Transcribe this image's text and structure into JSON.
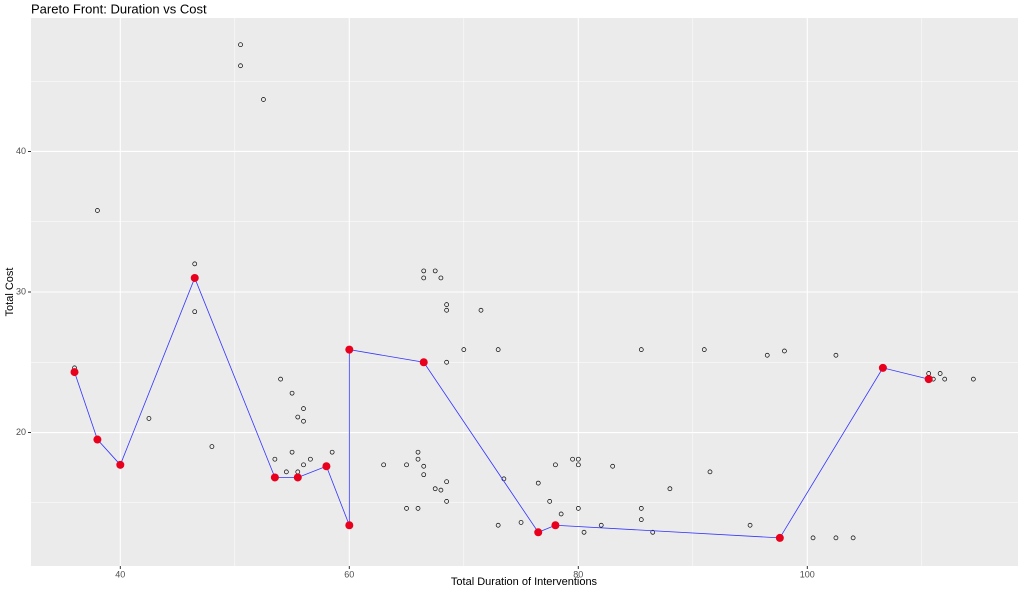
{
  "chart_data": {
    "type": "scatter",
    "title": "Pareto Front: Duration vs Cost",
    "x_label": "Total Duration of Interventions",
    "y_label": "Total Cost",
    "xlim": [
      32.2,
      118.4
    ],
    "ylim": [
      10.5,
      49.5
    ],
    "xticks": [
      40,
      60,
      80,
      100
    ],
    "yticks": [
      20,
      30,
      40
    ],
    "grid": true,
    "points": {
      "color": "#000000",
      "x": [
        36,
        38,
        42.5,
        46.5,
        46.5,
        48,
        50.5,
        50.5,
        52.5,
        53.5,
        54,
        54.5,
        55,
        55,
        55.5,
        55.5,
        56,
        56,
        56,
        56.6,
        58.5,
        63,
        65,
        65,
        66,
        66,
        66,
        66.5,
        66.5,
        66.5,
        66.5,
        67.5,
        67.5,
        68,
        68,
        68.5,
        68.5,
        68.5,
        68.5,
        68.5,
        70,
        71.5,
        73,
        73,
        73.5,
        75,
        76.5,
        77.5,
        78,
        78.5,
        79.5,
        80,
        80,
        80,
        80.5,
        82,
        83,
        85.5,
        85.5,
        85.5,
        86.5,
        88,
        91,
        91.5,
        95,
        96.5,
        98,
        100.5,
        102.5,
        102.5,
        104,
        110.6,
        111,
        111.6,
        112,
        114.5
      ],
      "y": [
        24.6,
        35.8,
        21.0,
        32.0,
        28.6,
        19.0,
        47.6,
        46.1,
        43.7,
        18.1,
        23.8,
        17.2,
        22.8,
        18.6,
        21.1,
        17.2,
        21.7,
        20.8,
        17.7,
        18.1,
        18.6,
        17.7,
        17.7,
        14.6,
        18.6,
        18.1,
        14.6,
        31.5,
        31.0,
        17.6,
        17.0,
        31.5,
        16.0,
        31.0,
        15.9,
        29.1,
        28.7,
        25.0,
        16.5,
        15.1,
        25.9,
        28.7,
        25.9,
        13.4,
        16.7,
        13.6,
        16.4,
        15.1,
        17.7,
        14.2,
        18.1,
        18.1,
        17.7,
        14.6,
        12.9,
        13.4,
        17.6,
        25.9,
        14.6,
        13.8,
        12.9,
        16.0,
        25.9,
        17.2,
        13.4,
        25.5,
        25.8,
        12.5,
        25.5,
        12.5,
        12.5,
        24.2,
        23.8,
        24.2,
        23.8,
        23.8
      ]
    },
    "front": {
      "color": "#e8001c",
      "line_color": "#3333ff",
      "x": [
        36,
        38,
        40,
        46.5,
        53.5,
        55.5,
        58,
        60,
        60,
        66.5,
        76.5,
        78,
        97.6,
        106.6,
        110.6
      ],
      "y": [
        24.3,
        19.5,
        17.7,
        31.0,
        16.8,
        16.8,
        17.6,
        13.4,
        25.9,
        25.0,
        12.9,
        13.4,
        12.5,
        24.6,
        23.8
      ]
    }
  }
}
